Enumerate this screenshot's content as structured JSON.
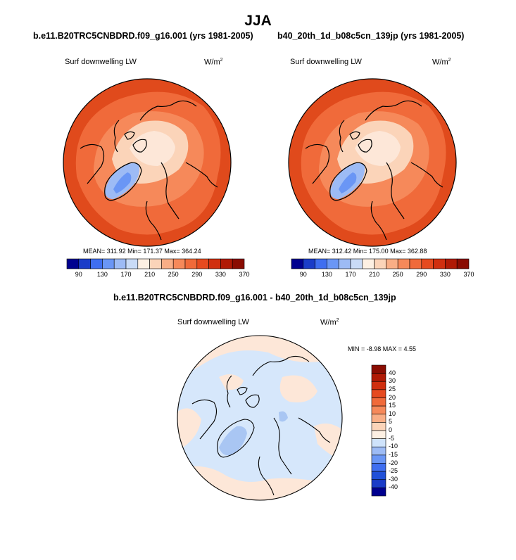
{
  "season": "JJA",
  "panels": [
    {
      "case_title": "b.e11.B20TRC5CNBDRD.f09_g16.001 (yrs 1981-2005)",
      "variable": "Surf downwelling LW",
      "units": "W/m",
      "units_exp": "2",
      "stats": "MEAN= 311.92  Min= 171.37  Max= 364.24"
    },
    {
      "case_title": "b40_20th_1d_b08c5cn_139jp (yrs 1981-2005)",
      "variable": "Surf downwelling LW",
      "units": "W/m",
      "units_exp": "2",
      "stats": "MEAN= 312.42  Min= 175.00  Max= 362.88"
    }
  ],
  "abs_colorbar": {
    "labels": [
      "90",
      "130",
      "170",
      "210",
      "250",
      "290",
      "330",
      "370"
    ],
    "colors": [
      "#00008f",
      "#1a3cc8",
      "#3f6ef0",
      "#6a96f5",
      "#9dbbf5",
      "#c9dbf7",
      "#fdf0e3",
      "#fbd4b9",
      "#f9ae86",
      "#f6895a",
      "#f06a3a",
      "#e64a1f",
      "#d02f0f",
      "#b01a05",
      "#8a0d02"
    ]
  },
  "diff": {
    "title": "b.e11.B20TRC5CNBDRD.f09_g16.001 - b40_20th_1d_b08c5cn_139jp",
    "variable": "Surf downwelling LW",
    "units": "W/m",
    "units_exp": "2",
    "stats": "MIN =  -8.98 MAX =   4.55"
  },
  "diff_colorbar": {
    "labels": [
      "40",
      "30",
      "25",
      "20",
      "15",
      "10",
      "5",
      "0",
      "-5",
      "-10",
      "-15",
      "-20",
      "-25",
      "-30",
      "-40"
    ],
    "colors": [
      "#8a0d02",
      "#b01a05",
      "#d02f0f",
      "#e64a1f",
      "#f06a3a",
      "#f6895a",
      "#f9ae86",
      "#fbd4b9",
      "#fdf0e3",
      "#cfe3fb",
      "#9dbbf5",
      "#6a96f5",
      "#3f6ef0",
      "#2050d8",
      "#1a3cc8",
      "#00008f"
    ]
  },
  "map_colors": {
    "outer": "#e04a1c",
    "mid": "#f06a3a",
    "light": "#f6895a",
    "pale": "#fbd4b9",
    "pale2": "#fde7d8",
    "greenland": "#9dbbf5",
    "greenland_core": "#6a96f5",
    "diff_base": "#d6e7fb",
    "diff_warm": "#fde7d8",
    "diff_cold": "#a9c6f3"
  }
}
